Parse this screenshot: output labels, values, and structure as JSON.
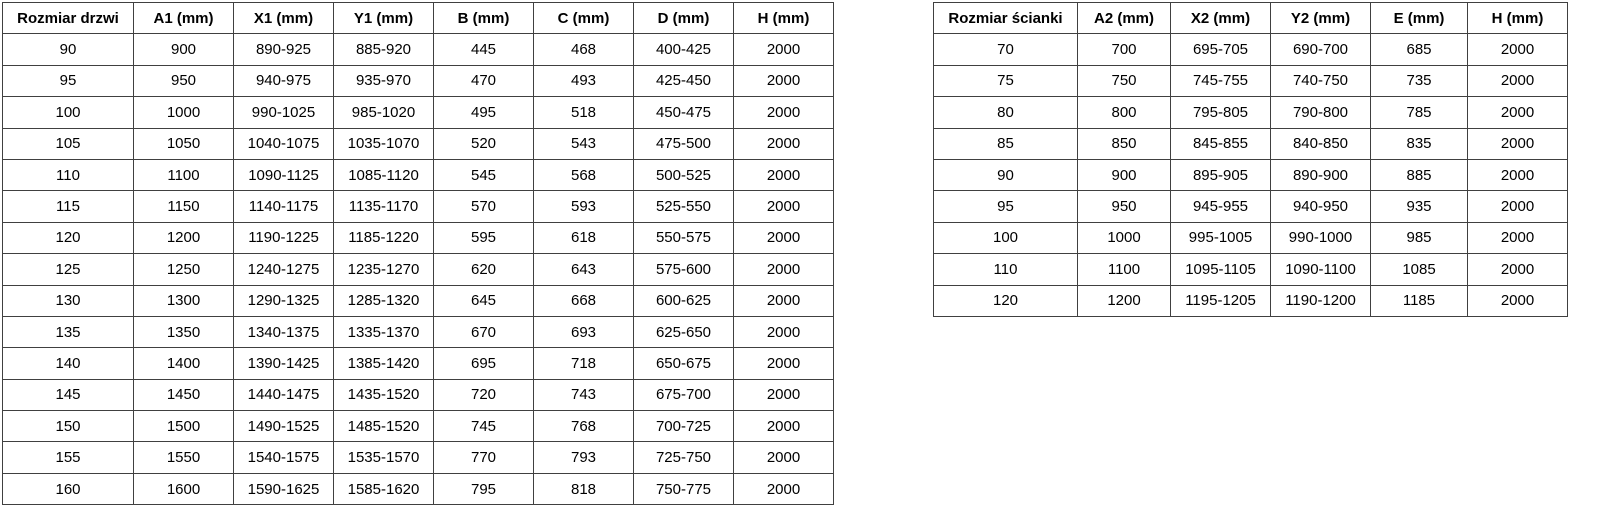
{
  "colors": {
    "border": "#404040",
    "text": "#000000",
    "background": "#ffffff"
  },
  "door_table": {
    "title": "Rozmiar drzwi",
    "headers": [
      "Rozmiar drzwi",
      "A1 (mm)",
      "X1 (mm)",
      "Y1 (mm)",
      "B (mm)",
      "C (mm)",
      "D (mm)",
      "H (mm)"
    ],
    "rows": [
      [
        "90",
        "900",
        "890-925",
        "885-920",
        "445",
        "468",
        "400-425",
        "2000"
      ],
      [
        "95",
        "950",
        "940-975",
        "935-970",
        "470",
        "493",
        "425-450",
        "2000"
      ],
      [
        "100",
        "1000",
        "990-1025",
        "985-1020",
        "495",
        "518",
        "450-475",
        "2000"
      ],
      [
        "105",
        "1050",
        "1040-1075",
        "1035-1070",
        "520",
        "543",
        "475-500",
        "2000"
      ],
      [
        "110",
        "1100",
        "1090-1125",
        "1085-1120",
        "545",
        "568",
        "500-525",
        "2000"
      ],
      [
        "115",
        "1150",
        "1140-1175",
        "1135-1170",
        "570",
        "593",
        "525-550",
        "2000"
      ],
      [
        "120",
        "1200",
        "1190-1225",
        "1185-1220",
        "595",
        "618",
        "550-575",
        "2000"
      ],
      [
        "125",
        "1250",
        "1240-1275",
        "1235-1270",
        "620",
        "643",
        "575-600",
        "2000"
      ],
      [
        "130",
        "1300",
        "1290-1325",
        "1285-1320",
        "645",
        "668",
        "600-625",
        "2000"
      ],
      [
        "135",
        "1350",
        "1340-1375",
        "1335-1370",
        "670",
        "693",
        "625-650",
        "2000"
      ],
      [
        "140",
        "1400",
        "1390-1425",
        "1385-1420",
        "695",
        "718",
        "650-675",
        "2000"
      ],
      [
        "145",
        "1450",
        "1440-1475",
        "1435-1520",
        "720",
        "743",
        "675-700",
        "2000"
      ],
      [
        "150",
        "1500",
        "1490-1525",
        "1485-1520",
        "745",
        "768",
        "700-725",
        "2000"
      ],
      [
        "155",
        "1550",
        "1540-1575",
        "1535-1570",
        "770",
        "793",
        "725-750",
        "2000"
      ],
      [
        "160",
        "1600",
        "1590-1625",
        "1585-1620",
        "795",
        "818",
        "750-775",
        "2000"
      ]
    ]
  },
  "wall_table": {
    "title": "Rozmiar ścianki",
    "headers": [
      "Rozmiar ścianki",
      "A2 (mm)",
      "X2 (mm)",
      "Y2 (mm)",
      "E (mm)",
      "H (mm)"
    ],
    "rows": [
      [
        "70",
        "700",
        "695-705",
        "690-700",
        "685",
        "2000"
      ],
      [
        "75",
        "750",
        "745-755",
        "740-750",
        "735",
        "2000"
      ],
      [
        "80",
        "800",
        "795-805",
        "790-800",
        "785",
        "2000"
      ],
      [
        "85",
        "850",
        "845-855",
        "840-850",
        "835",
        "2000"
      ],
      [
        "90",
        "900",
        "895-905",
        "890-900",
        "885",
        "2000"
      ],
      [
        "95",
        "950",
        "945-955",
        "940-950",
        "935",
        "2000"
      ],
      [
        "100",
        "1000",
        "995-1005",
        "990-1000",
        "985",
        "2000"
      ],
      [
        "110",
        "1100",
        "1095-1105",
        "1090-1100",
        "1085",
        "2000"
      ],
      [
        "120",
        "1200",
        "1195-1205",
        "1190-1200",
        "1185",
        "2000"
      ]
    ]
  }
}
